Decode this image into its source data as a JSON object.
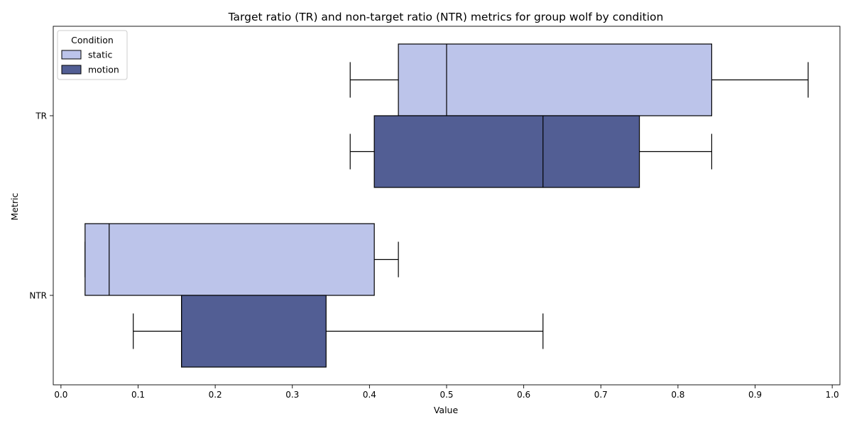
{
  "chart_data": {
    "type": "box",
    "orientation": "horizontal",
    "title": "Target ratio (TR) and non-target ratio (NTR) metrics for group wolf by condition",
    "xlabel": "Value",
    "ylabel": "Metric",
    "xlim": [
      -0.01,
      1.01
    ],
    "xticks": [
      0.0,
      0.1,
      0.2,
      0.3,
      0.4,
      0.5,
      0.6,
      0.7,
      0.8,
      0.9,
      1.0
    ],
    "xtick_labels": [
      "0.0",
      "0.1",
      "0.2",
      "0.3",
      "0.4",
      "0.5",
      "0.6",
      "0.7",
      "0.8",
      "0.9",
      "1.0"
    ],
    "categories": [
      "TR",
      "NTR"
    ],
    "grid": false,
    "legend": {
      "title": "Condition",
      "placement": "upper-left",
      "entries": [
        "static",
        "motion"
      ]
    },
    "series": [
      {
        "name": "static",
        "color": "#bcc4ea",
        "boxes": [
          {
            "category": "TR",
            "whisker_low": 0.375,
            "q1": 0.4375,
            "median": 0.5,
            "q3": 0.84375,
            "whisker_high": 0.96875
          },
          {
            "category": "NTR",
            "whisker_low": 0.03125,
            "q1": 0.03125,
            "median": 0.0625,
            "q3": 0.40625,
            "whisker_high": 0.4375
          }
        ]
      },
      {
        "name": "motion",
        "color": "#525e94",
        "boxes": [
          {
            "category": "TR",
            "whisker_low": 0.375,
            "q1": 0.40625,
            "median": 0.625,
            "q3": 0.75,
            "whisker_high": 0.84375
          },
          {
            "category": "NTR",
            "whisker_low": 0.09375,
            "q1": 0.15625,
            "median": 0.15625,
            "q3": 0.34375,
            "whisker_high": 0.625
          }
        ]
      }
    ]
  }
}
